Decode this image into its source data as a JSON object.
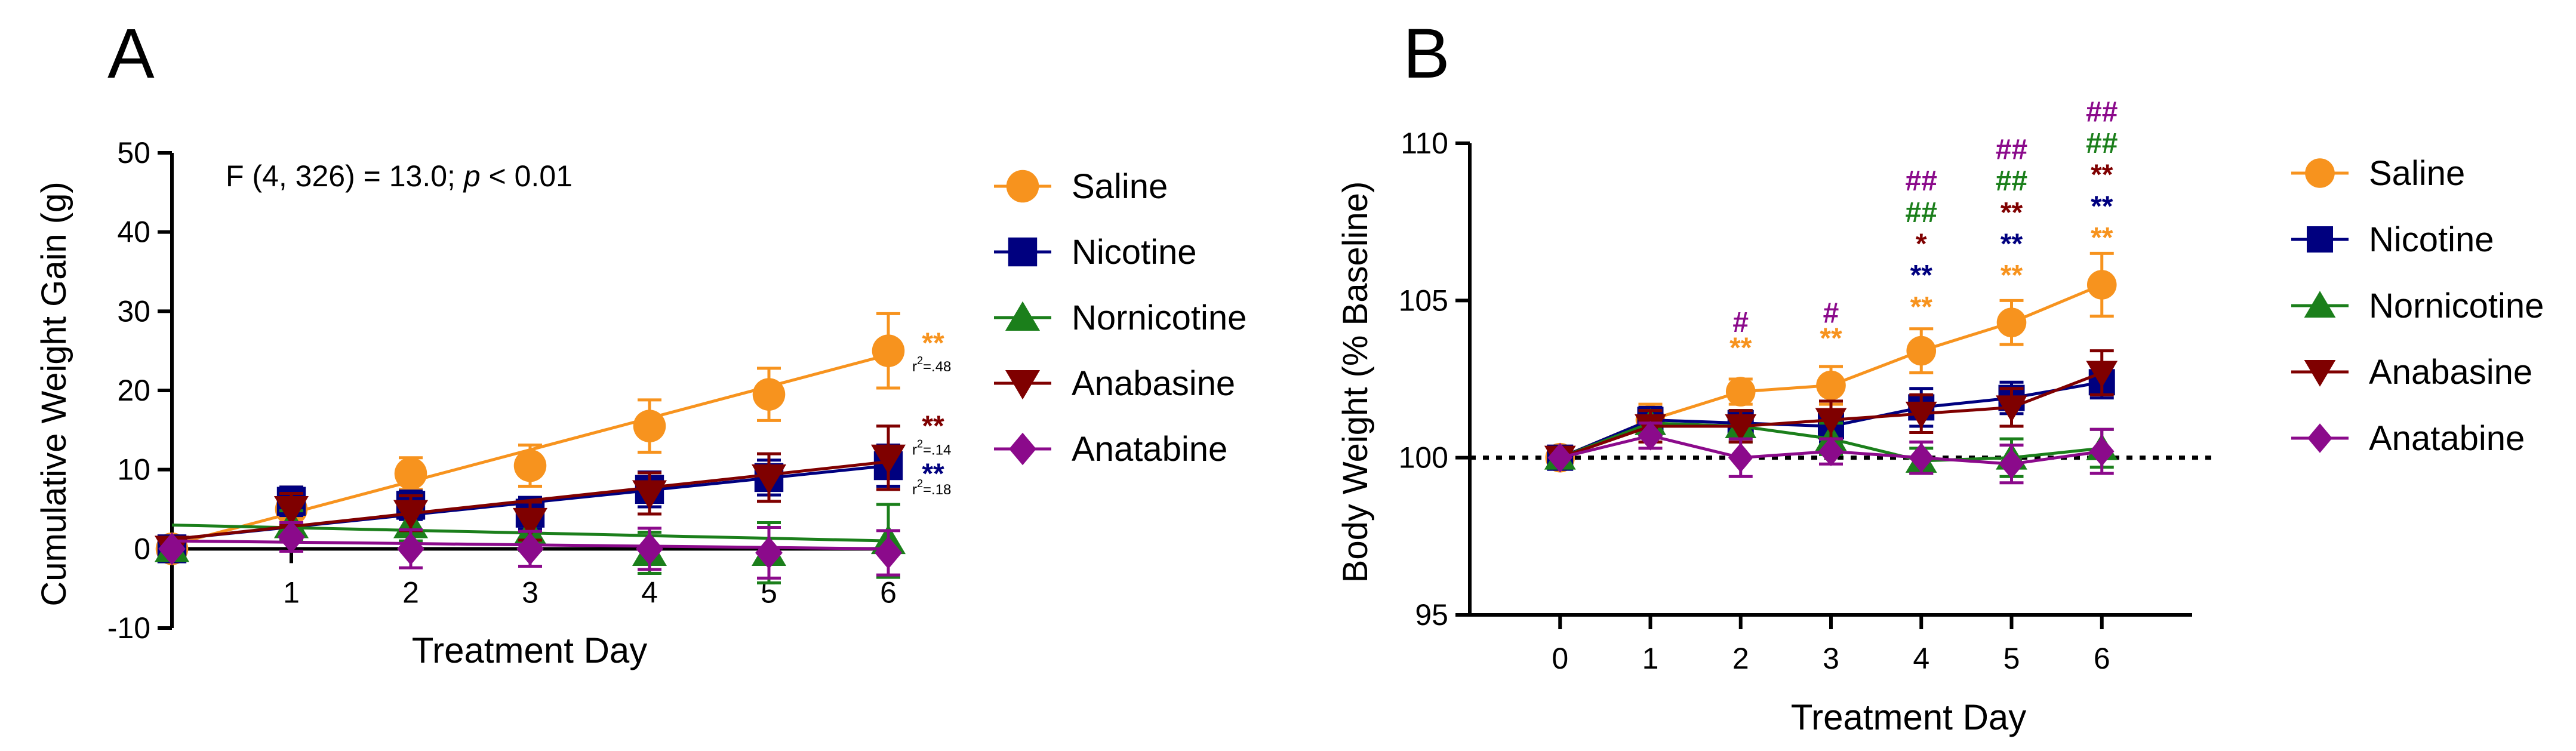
{
  "colors": {
    "saline": "#F7931E",
    "nicotine": "#00007F",
    "nornicotine": "#1B7F1B",
    "anabasine": "#7F0000",
    "anatabine": "#8B0A8B",
    "axis": "#000000"
  },
  "chart_data": [
    {
      "panel": "A",
      "type": "line",
      "ylabel": "Cumulative Weight Gain (g)",
      "xlabel": "Treatment Day",
      "annotation": {
        "prefix": "F (4, 326) = 13.0; ",
        "p": "p",
        "suffix": " < 0.01"
      },
      "x": [
        0,
        1,
        2,
        3,
        4,
        5,
        6
      ],
      "x_ticks": [
        "1",
        "2",
        "3",
        "4",
        "5",
        "6"
      ],
      "xlim": [
        0,
        6
      ],
      "ylim": [
        -10,
        50
      ],
      "y_ticks": [
        "-10",
        "0",
        "10",
        "20",
        "30",
        "40",
        "50"
      ],
      "legend_position": "right",
      "series": [
        {
          "name": "Saline",
          "marker": "circle",
          "color_key": "saline",
          "values": [
            0,
            5,
            9.5,
            10.5,
            15.5,
            19.5,
            25
          ],
          "errors": [
            0,
            2.8,
            2.0,
            2.6,
            3.3,
            3.3,
            4.7
          ],
          "fit": [
            0.5,
            24.5
          ]
        },
        {
          "name": "Nicotine",
          "marker": "square",
          "color_key": "nicotine",
          "values": [
            0,
            6,
            5.5,
            4.5,
            7.5,
            9,
            10.5
          ],
          "errors": [
            0,
            1.8,
            1.8,
            2.0,
            2.2,
            2.2,
            2.6
          ],
          "fit": [
            1.2,
            10.5
          ]
        },
        {
          "name": "Nornicotine",
          "marker": "triangle-up",
          "color_key": "nornicotine",
          "values": [
            0,
            3,
            3,
            2,
            -0.5,
            -0.5,
            1
          ],
          "errors": [
            0,
            1.8,
            2.0,
            2.2,
            2.6,
            3.8,
            4.6
          ],
          "fit": [
            3,
            1
          ]
        },
        {
          "name": "Anabasine",
          "marker": "triangle-down",
          "color_key": "anabasine",
          "values": [
            0,
            5,
            4.5,
            3.5,
            7,
            9,
            11.5
          ],
          "errors": [
            0,
            2.0,
            2.2,
            2.4,
            2.6,
            3.0,
            4.0
          ],
          "fit": [
            1.2,
            11
          ]
        },
        {
          "name": "Anatabine",
          "marker": "diamond",
          "color_key": "anatabine",
          "values": [
            0,
            1.5,
            0,
            0,
            0,
            -0.5,
            -0.5
          ],
          "errors": [
            0,
            1.8,
            2.4,
            2.2,
            2.6,
            3.2,
            2.8
          ],
          "fit": [
            1,
            0
          ]
        }
      ],
      "sig_labels": [
        {
          "text": "**",
          "color_key": "saline",
          "at": [
            6,
            26
          ]
        },
        {
          "text": "**",
          "color_key": "anabasine",
          "at": [
            6,
            15.5
          ]
        },
        {
          "text": "**",
          "color_key": "nicotine",
          "at": [
            6,
            9.5
          ]
        }
      ],
      "r_squared": [
        {
          "r": "r",
          "exp": "2",
          "val": "=.48",
          "at": [
            6,
            23
          ]
        },
        {
          "r": "r",
          "exp": "2",
          "val": "=.14",
          "at": [
            6,
            12.5
          ]
        },
        {
          "r": "r",
          "exp": "2",
          "val": "=.18",
          "at": [
            6,
            7.5
          ]
        }
      ]
    },
    {
      "panel": "B",
      "type": "line",
      "ylabel": "Body Weight (% Baseline)",
      "xlabel": "Treatment Day",
      "x": [
        0,
        1,
        2,
        3,
        4,
        5,
        6
      ],
      "x_ticks": [
        "0",
        "1",
        "2",
        "3",
        "4",
        "5",
        "6"
      ],
      "xlim": [
        -1,
        7
      ],
      "ylim": [
        95,
        110
      ],
      "y_ticks": [
        "95",
        "100",
        "105",
        "110"
      ],
      "baseline": 100,
      "legend_position": "right",
      "series": [
        {
          "name": "Saline",
          "marker": "circle",
          "color_key": "saline",
          "values": [
            100,
            101.2,
            102.1,
            102.3,
            103.4,
            104.3,
            105.5
          ],
          "errors": [
            0,
            0.5,
            0.4,
            0.6,
            0.7,
            0.7,
            1.0
          ]
        },
        {
          "name": "Nicotine",
          "marker": "square",
          "color_key": "nicotine",
          "values": [
            100,
            101.2,
            101.1,
            101.0,
            101.6,
            101.9,
            102.4
          ],
          "errors": [
            0,
            0.4,
            0.4,
            0.5,
            0.6,
            0.5,
            0.5
          ]
        },
        {
          "name": "Nornicotine",
          "marker": "triangle-up",
          "color_key": "nornicotine",
          "values": [
            100,
            101.1,
            101.0,
            100.6,
            99.9,
            100.0,
            100.3
          ],
          "errors": [
            0,
            0.4,
            0.5,
            0.5,
            0.4,
            0.6,
            0.6
          ]
        },
        {
          "name": "Anabasine",
          "marker": "triangle-down",
          "color_key": "anabasine",
          "values": [
            100,
            101.0,
            101.0,
            101.2,
            101.4,
            101.6,
            102.7
          ],
          "errors": [
            0,
            0.5,
            0.5,
            0.6,
            0.6,
            0.6,
            0.7
          ]
        },
        {
          "name": "Anatabine",
          "marker": "diamond",
          "color_key": "anatabine",
          "values": [
            100,
            100.7,
            100.0,
            100.2,
            100.0,
            99.8,
            100.2
          ],
          "errors": [
            0,
            0.4,
            0.6,
            0.4,
            0.5,
            0.6,
            0.7
          ]
        }
      ],
      "sig_labels": [
        {
          "text": "**",
          "color_key": "saline",
          "at": [
            2,
            103.5
          ]
        },
        {
          "text": "#",
          "color_key": "anatabine",
          "at": [
            2,
            104.3
          ]
        },
        {
          "text": "**",
          "color_key": "saline",
          "at": [
            3,
            103.8
          ]
        },
        {
          "text": "#",
          "color_key": "anatabine",
          "at": [
            3,
            104.6
          ]
        },
        {
          "text": "**",
          "color_key": "saline",
          "at": [
            4,
            104.8
          ]
        },
        {
          "text": "**",
          "color_key": "nicotine",
          "at": [
            4,
            105.8
          ]
        },
        {
          "text": "*",
          "color_key": "anabasine",
          "at": [
            4,
            106.8
          ]
        },
        {
          "text": "##",
          "color_key": "nornicotine",
          "at": [
            4,
            107.8
          ]
        },
        {
          "text": "##",
          "color_key": "anatabine",
          "at": [
            4,
            108.8
          ]
        },
        {
          "text": "**",
          "color_key": "saline",
          "at": [
            5,
            105.8
          ]
        },
        {
          "text": "**",
          "color_key": "nicotine",
          "at": [
            5,
            106.8
          ]
        },
        {
          "text": "**",
          "color_key": "anabasine",
          "at": [
            5,
            107.8
          ]
        },
        {
          "text": "##",
          "color_key": "nornicotine",
          "at": [
            5,
            108.8
          ]
        },
        {
          "text": "##",
          "color_key": "anatabine",
          "at": [
            5,
            109.8
          ]
        },
        {
          "text": "**",
          "color_key": "saline",
          "at": [
            6,
            107.0
          ]
        },
        {
          "text": "**",
          "color_key": "nicotine",
          "at": [
            6,
            108.0
          ]
        },
        {
          "text": "**",
          "color_key": "anabasine",
          "at": [
            6,
            109.0
          ]
        },
        {
          "text": "##",
          "color_key": "nornicotine",
          "at": [
            6,
            110.0
          ]
        },
        {
          "text": "##",
          "color_key": "anatabine",
          "at": [
            6,
            111.0
          ]
        }
      ]
    }
  ]
}
